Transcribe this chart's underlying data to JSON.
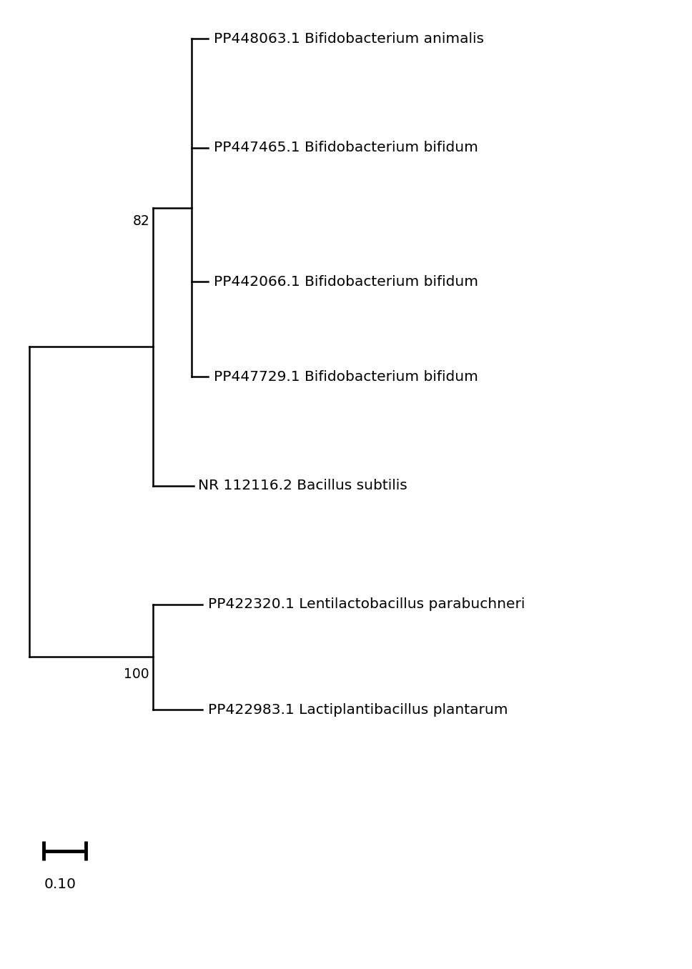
{
  "taxa": [
    "PP448063.1 Bifidobacterium animalis",
    "PP447465.1 Bifidobacterium bifidum",
    "PP442066.1 Bifidobacterium bifidum",
    "PP447729.1 Bifidobacterium bifidum",
    "NR 112116.2 Bacillus subtilis",
    "PP422320.1 Lentilactobacillus parabuchneri",
    "PP422983.1 Lactiplantibacillus plantarum"
  ],
  "bg_color": "#ffffff",
  "line_color": "#000000",
  "line_width": 1.8,
  "font_size": 14.5,
  "figsize": [
    9.68,
    13.56
  ],
  "dpi": 100
}
